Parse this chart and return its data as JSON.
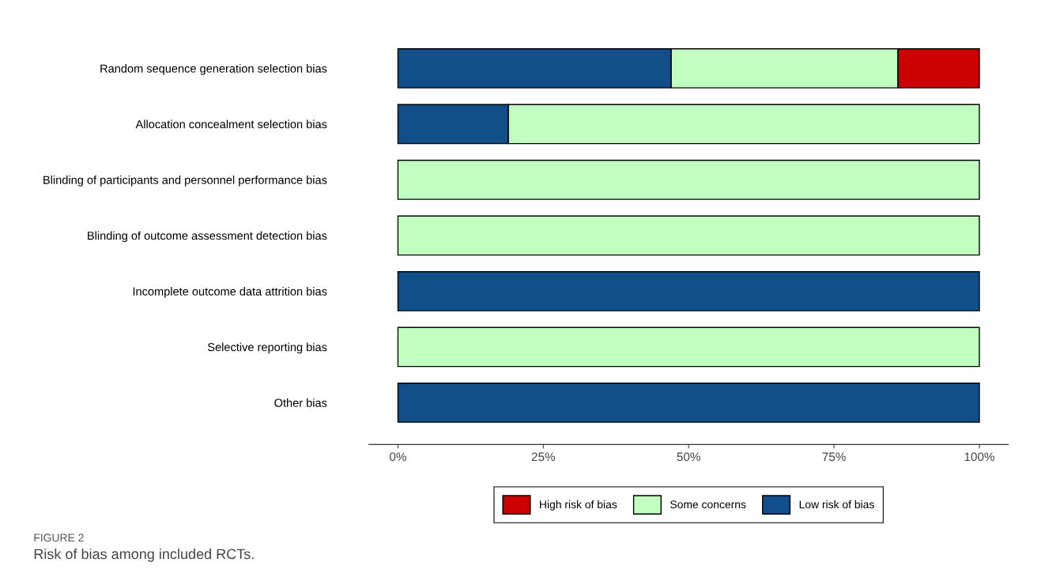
{
  "chart_data": {
    "type": "bar",
    "orientation": "horizontal",
    "stacked": true,
    "categories": [
      "Random sequence generation selection bias",
      "Allocation concealment selection bias",
      "Blinding of participants and personnel performance bias",
      "Blinding of outcome assessment detection bias",
      "Incomplete outcome data attrition bias",
      "Selective reporting bias",
      "Other bias"
    ],
    "series": [
      {
        "name": "Low risk of bias",
        "color": "#124e8a",
        "values": [
          47,
          19,
          0,
          0,
          100,
          0,
          100
        ]
      },
      {
        "name": "Some concerns",
        "color": "#c0ffc0",
        "values": [
          39,
          81,
          100,
          100,
          0,
          100,
          0
        ]
      },
      {
        "name": "High risk of bias",
        "color": "#cc0000",
        "values": [
          14,
          0,
          0,
          0,
          0,
          0,
          0
        ]
      }
    ],
    "xlim": [
      -5,
      105
    ],
    "xticks": [
      {
        "value": 0,
        "label": "0%"
      },
      {
        "value": 25,
        "label": "25%"
      },
      {
        "value": 50,
        "label": "50%"
      },
      {
        "value": 75,
        "label": "75%"
      },
      {
        "value": 100,
        "label": "100%"
      }
    ],
    "legend": "bottom",
    "grid": false,
    "annotations": [
      "FIGURE 2",
      "Risk of bias among included RCTs."
    ]
  }
}
